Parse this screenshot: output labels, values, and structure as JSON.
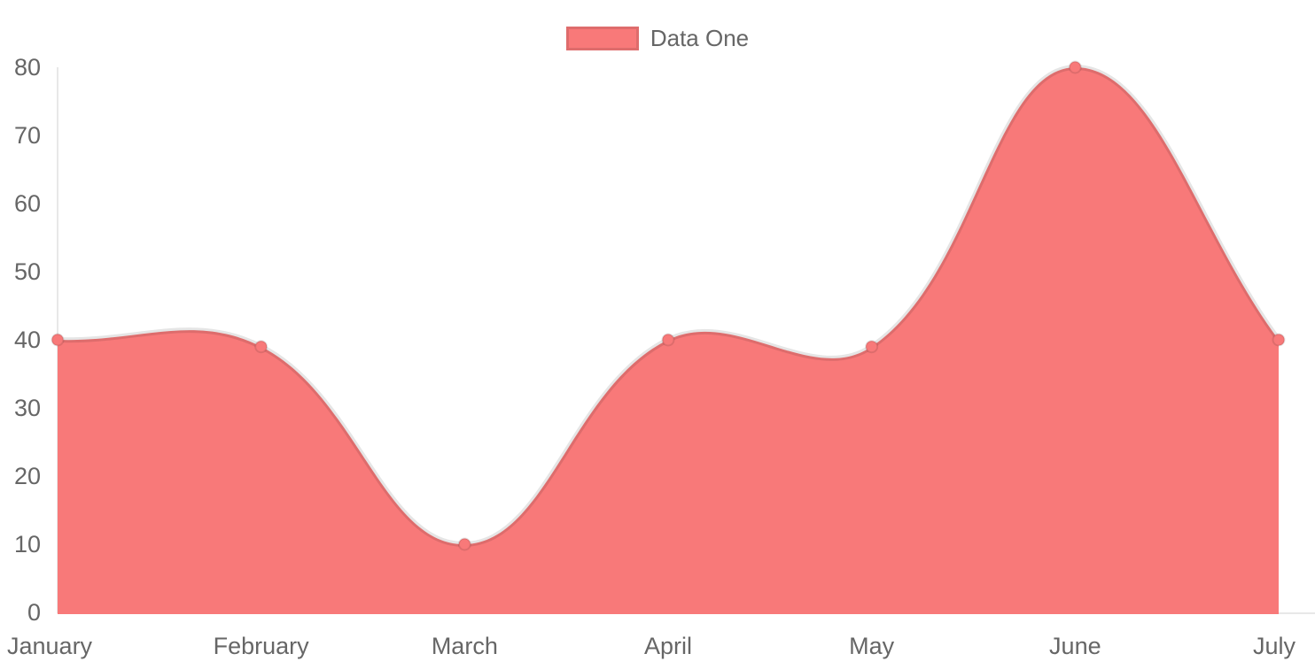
{
  "chart_data": {
    "type": "area",
    "title": "",
    "categories": [
      "January",
      "February",
      "March",
      "April",
      "May",
      "June",
      "July"
    ],
    "series": [
      {
        "name": "Data One",
        "values": [
          40,
          39,
          10,
          40,
          39,
          80,
          40
        ]
      }
    ],
    "xlabel": "",
    "ylabel": "",
    "ylim": [
      0,
      80
    ],
    "yticks": [
      0,
      10,
      20,
      30,
      40,
      50,
      60,
      70,
      80
    ],
    "grid": false,
    "curve_tension": 0.4,
    "legend_position": "top",
    "colors": {
      "fill": "#f87979",
      "line_border": "rgba(0,0,0,0.10)",
      "point_fill": "#f87979",
      "point_border": "rgba(0,0,0,0.10)",
      "axis_line": "rgba(0,0,0,0.09)",
      "tick_text": "#666666"
    }
  }
}
